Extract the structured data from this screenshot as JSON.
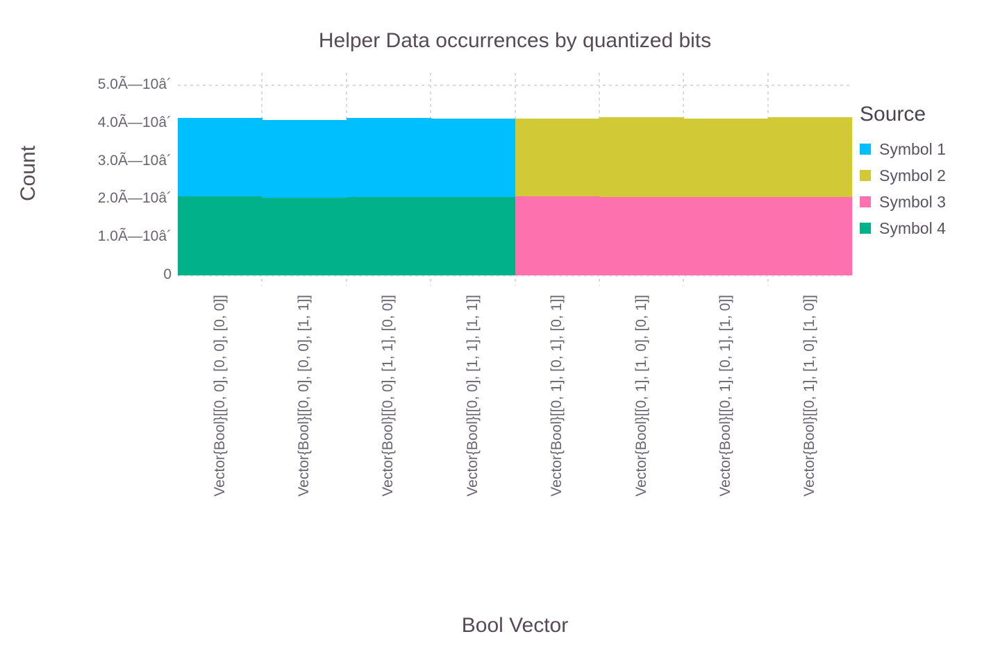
{
  "chart_data": {
    "type": "bar",
    "stacked": true,
    "title": "Helper Data occurrences by quantized bits",
    "xlabel": "Bool Vector",
    "ylabel": "Count",
    "legend_title": "Source",
    "legend_position": "right",
    "grid": "dashed",
    "ylim": [
      0,
      53650
    ],
    "y_ticks": {
      "values": [
        0,
        10000,
        20000,
        30000,
        40000,
        50000
      ],
      "labels": [
        "0",
        "1.0Ã—10â´",
        "2.0Ã—10â´",
        "3.0Ã—10â´",
        "4.0Ã—10â´",
        "5.0Ã—10â´"
      ]
    },
    "categories": [
      "Vector{Bool}[[0, 0], [0, 0], [0, 0]]",
      "Vector{Bool}[[0, 0], [0, 0], [1, 1]]",
      "Vector{Bool}[[0, 0], [1, 1], [0, 0]]",
      "Vector{Bool}[[0, 0], [1, 1], [1, 1]]",
      "Vector{Bool}[[0, 1], [0, 1], [0, 1]]",
      "Vector{Bool}[[0, 1], [1, 0], [0, 1]]",
      "Vector{Bool}[[0, 1], [0, 1], [1, 0]]",
      "Vector{Bool}[[0, 1], [1, 0], [1, 0]]"
    ],
    "series": [
      {
        "name": "Symbol 1",
        "color": "#00bfff",
        "values": [
          20600,
          20400,
          20700,
          20600,
          0,
          0,
          0,
          0
        ]
      },
      {
        "name": "Symbol 2",
        "color": "#d2c937",
        "values": [
          0,
          0,
          0,
          0,
          20400,
          20900,
          20550,
          21000
        ]
      },
      {
        "name": "Symbol 3",
        "color": "#fd71af",
        "values": [
          0,
          0,
          0,
          0,
          20800,
          20700,
          20650,
          20600
        ]
      },
      {
        "name": "Symbol 4",
        "color": "#00b189",
        "values": [
          20800,
          20500,
          20700,
          20600,
          0,
          0,
          0,
          0
        ]
      }
    ],
    "stack_order": [
      "Symbol 4",
      "Symbol 3",
      "Symbol 2",
      "Symbol 1"
    ]
  },
  "colors": {
    "title_text": "#564a55",
    "tick_text": "#6a6370",
    "legend_title_text": "#4a4350",
    "gridline": "#d9d7e2"
  }
}
